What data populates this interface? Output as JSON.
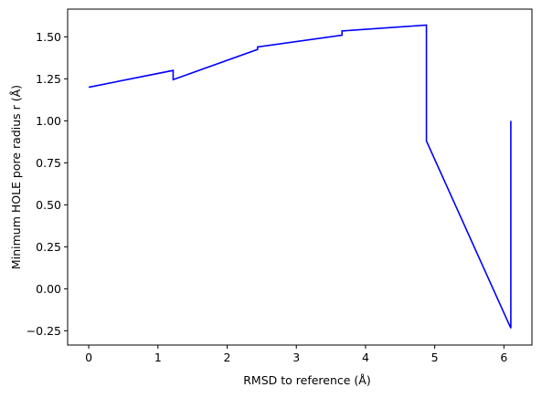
{
  "chart_data": {
    "type": "line",
    "xlabel": "RMSD to reference (Å)",
    "ylabel": "Minimum HOLE pore radius r (Å)",
    "xlim": [
      -0.305,
      6.405
    ],
    "ylim": [
      -0.335,
      1.665
    ],
    "x_ticks": [
      0,
      1,
      2,
      3,
      4,
      5,
      6
    ],
    "y_ticks": [
      -0.25,
      0.0,
      0.25,
      0.5,
      0.75,
      1.0,
      1.25,
      1.5
    ],
    "x_tick_labels": [
      "0",
      "1",
      "2",
      "3",
      "4",
      "5",
      "6"
    ],
    "y_tick_labels": [
      "−0.25",
      "0.00",
      "0.25",
      "0.50",
      "0.75",
      "1.00",
      "1.25",
      "1.50"
    ],
    "grid": false,
    "line_color": "#0000ff",
    "series": [
      {
        "x": [
          0.0,
          1.22,
          1.22,
          2.44,
          2.44,
          3.66,
          3.66,
          4.88,
          4.88,
          6.1,
          6.1
        ],
        "y": [
          1.2,
          1.3,
          1.245,
          1.425,
          1.44,
          1.51,
          1.535,
          1.57,
          0.88,
          -0.235,
          1.0
        ]
      }
    ]
  }
}
